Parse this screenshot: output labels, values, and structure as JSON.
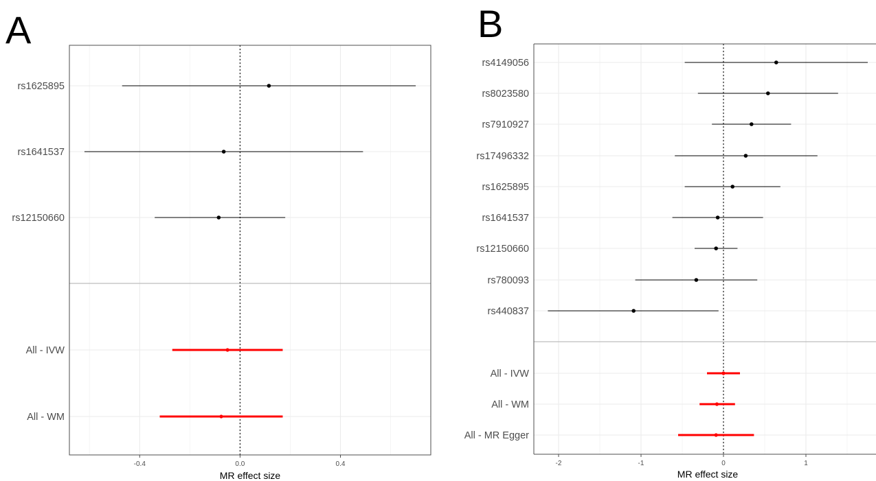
{
  "chart_data": [
    {
      "panel": "A",
      "type": "scatter",
      "title": "",
      "xlabel": "MR effect size",
      "ylabel": "",
      "xlim": [
        -0.68,
        0.76
      ],
      "xticks": [
        -0.4,
        0.0,
        0.4
      ],
      "xtick_labels": [
        "-0.4",
        "0.0",
        "0.4"
      ],
      "grid": true,
      "reference_line_x": 0,
      "rows": [
        {
          "label": "rs1625895",
          "value": 0.115,
          "lo": -0.47,
          "hi": 0.7,
          "group": "snp"
        },
        {
          "label": "rs1641537",
          "value": -0.065,
          "lo": -0.62,
          "hi": 0.49,
          "group": "snp"
        },
        {
          "label": "rs12150660",
          "value": -0.085,
          "lo": -0.34,
          "hi": 0.18,
          "group": "snp"
        },
        {
          "label": "All - IVW",
          "value": -0.05,
          "lo": -0.27,
          "hi": 0.17,
          "group": "summary"
        },
        {
          "label": "All - WM",
          "value": -0.075,
          "lo": -0.32,
          "hi": 0.17,
          "group": "summary"
        }
      ],
      "colors": {
        "snp": "#000000",
        "summary": "#ff0000"
      }
    },
    {
      "panel": "B",
      "type": "scatter",
      "title": "",
      "xlabel": "MR effect size",
      "ylabel": "",
      "xlim": [
        -2.3,
        1.85
      ],
      "xticks": [
        -2,
        -1,
        0,
        1
      ],
      "xtick_labels": [
        "-2",
        "-1",
        "0",
        "1"
      ],
      "grid": true,
      "reference_line_x": 0,
      "rows": [
        {
          "label": "rs4149056",
          "value": 0.64,
          "lo": -0.47,
          "hi": 1.75,
          "group": "snp"
        },
        {
          "label": "rs8023580",
          "value": 0.54,
          "lo": -0.31,
          "hi": 1.39,
          "group": "snp"
        },
        {
          "label": "rs7910927",
          "value": 0.34,
          "lo": -0.14,
          "hi": 0.82,
          "group": "snp"
        },
        {
          "label": "rs17496332",
          "value": 0.27,
          "lo": -0.59,
          "hi": 1.14,
          "group": "snp"
        },
        {
          "label": "rs1625895",
          "value": 0.11,
          "lo": -0.47,
          "hi": 0.69,
          "group": "snp"
        },
        {
          "label": "rs1641537",
          "value": -0.07,
          "lo": -0.62,
          "hi": 0.48,
          "group": "snp"
        },
        {
          "label": "rs12150660",
          "value": -0.09,
          "lo": -0.35,
          "hi": 0.17,
          "group": "snp"
        },
        {
          "label": "rs780093",
          "value": -0.33,
          "lo": -1.07,
          "hi": 0.41,
          "group": "snp"
        },
        {
          "label": "rs440837",
          "value": -1.09,
          "lo": -2.13,
          "hi": -0.06,
          "group": "snp"
        },
        {
          "label": "All - IVW",
          "value": 0.0,
          "lo": -0.2,
          "hi": 0.2,
          "group": "summary"
        },
        {
          "label": "All - WM",
          "value": -0.08,
          "lo": -0.29,
          "hi": 0.14,
          "group": "summary"
        },
        {
          "label": "All - MR Egger",
          "value": -0.09,
          "lo": -0.55,
          "hi": 0.37,
          "group": "summary"
        }
      ],
      "colors": {
        "snp": "#000000",
        "summary": "#ff0000"
      }
    }
  ]
}
